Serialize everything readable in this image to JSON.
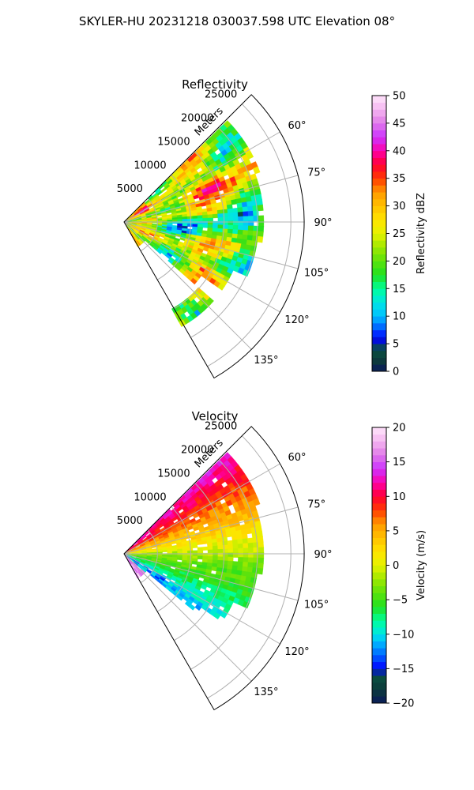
{
  "figure_title": "SKYLER-HU  20231218  030037.598 UTC Elevation 08°",
  "chart_data": [
    {
      "type": "heatmap",
      "projection": "polar-sector",
      "title": "Reflectivity",
      "radial_label": "Meters",
      "radial_ticks": [
        5000,
        10000,
        15000,
        20000,
        25000
      ],
      "radial_tick_labels": [
        "5000",
        "10000",
        "15000",
        "20000",
        "25000"
      ],
      "radial_range": [
        0,
        27000
      ],
      "azimuth_range": [
        45,
        150
      ],
      "azimuth_ticks": [
        60,
        75,
        90,
        105,
        120,
        135
      ],
      "azimuth_tick_labels": [
        "60°",
        "75°",
        "90°",
        "105°",
        "120°",
        "135°"
      ],
      "grid": true,
      "colorbar": {
        "label": "Reflectivity dBZ",
        "range": [
          0,
          50
        ],
        "ticks": [
          0,
          5,
          10,
          15,
          20,
          25,
          30,
          35,
          40,
          45,
          50
        ],
        "tick_labels": [
          "0",
          "5",
          "10",
          "15",
          "20",
          "25",
          "30",
          "35",
          "40",
          "45",
          "50"
        ],
        "stops": [
          {
            "v": 0,
            "c": "#0a1a5c"
          },
          {
            "v": 2,
            "c": "#0d3b3b"
          },
          {
            "v": 4,
            "c": "#0a5040"
          },
          {
            "v": 6,
            "c": "#0000ff"
          },
          {
            "v": 8,
            "c": "#0066ff"
          },
          {
            "v": 10,
            "c": "#00bfff"
          },
          {
            "v": 12.5,
            "c": "#00e5e5"
          },
          {
            "v": 15,
            "c": "#00ff9a"
          },
          {
            "v": 17.5,
            "c": "#20e020"
          },
          {
            "v": 20,
            "c": "#5de20c"
          },
          {
            "v": 22.5,
            "c": "#9ee800"
          },
          {
            "v": 25,
            "c": "#e6f200"
          },
          {
            "v": 27.5,
            "c": "#ffe400"
          },
          {
            "v": 30,
            "c": "#ffc000"
          },
          {
            "v": 32.5,
            "c": "#ff9a00"
          },
          {
            "v": 35,
            "c": "#ff3a00"
          },
          {
            "v": 37.5,
            "c": "#ff0033"
          },
          {
            "v": 40,
            "c": "#ff00aa"
          },
          {
            "v": 42.5,
            "c": "#cc33ff"
          },
          {
            "v": 45,
            "c": "#e07ae8"
          },
          {
            "v": 47.5,
            "c": "#f4b6f0"
          },
          {
            "v": 50,
            "c": "#ffe6fb"
          }
        ]
      },
      "echo_summary": "values mostly 15–38 dBZ out to ~21000 m, bands near 35 dBZ along 60–80° and 115–125°"
    },
    {
      "type": "heatmap",
      "projection": "polar-sector",
      "title": "Velocity",
      "radial_label": "Meters",
      "radial_ticks": [
        5000,
        10000,
        15000,
        20000,
        25000
      ],
      "radial_tick_labels": [
        "5000",
        "10000",
        "15000",
        "20000",
        "25000"
      ],
      "radial_range": [
        0,
        27000
      ],
      "azimuth_range": [
        45,
        150
      ],
      "azimuth_ticks": [
        60,
        75,
        90,
        105,
        120,
        135
      ],
      "azimuth_tick_labels": [
        "60°",
        "75°",
        "90°",
        "105°",
        "120°",
        "135°"
      ],
      "grid": true,
      "colorbar": {
        "label": "Velocity (m/s)",
        "range": [
          -20,
          20
        ],
        "ticks": [
          -20,
          -15,
          -10,
          -5,
          0,
          5,
          10,
          15,
          20
        ],
        "tick_labels": [
          "−20",
          "−15",
          "−10",
          "−5",
          "0",
          "5",
          "10",
          "15",
          "20"
        ],
        "stops": [
          {
            "v": -20,
            "c": "#0a1a5c"
          },
          {
            "v": -18,
            "c": "#0d3b3b"
          },
          {
            "v": -16,
            "c": "#0a5040"
          },
          {
            "v": -15,
            "c": "#0000ff"
          },
          {
            "v": -13,
            "c": "#0066ff"
          },
          {
            "v": -11,
            "c": "#00bfff"
          },
          {
            "v": -10,
            "c": "#00e5e5"
          },
          {
            "v": -8,
            "c": "#00ff9a"
          },
          {
            "v": -6,
            "c": "#20e020"
          },
          {
            "v": -4,
            "c": "#5de20c"
          },
          {
            "v": -2,
            "c": "#9ee800"
          },
          {
            "v": 0,
            "c": "#e6f200"
          },
          {
            "v": 2,
            "c": "#ffe400"
          },
          {
            "v": 4,
            "c": "#ffc000"
          },
          {
            "v": 6,
            "c": "#ff9a00"
          },
          {
            "v": 8,
            "c": "#ff3a00"
          },
          {
            "v": 10,
            "c": "#ff0033"
          },
          {
            "v": 12,
            "c": "#ff00aa"
          },
          {
            "v": 14,
            "c": "#cc33ff"
          },
          {
            "v": 16,
            "c": "#e07ae8"
          },
          {
            "v": 18,
            "c": "#f4b6f0"
          },
          {
            "v": 20,
            "c": "#ffe6fb"
          }
        ]
      },
      "echo_summary": "approx +8 to +12 m/s near 50–75°, ~0 m/s near 90°, −5 to −12 m/s near 100–125°, strongest outbound near origin at 120–130°"
    }
  ]
}
